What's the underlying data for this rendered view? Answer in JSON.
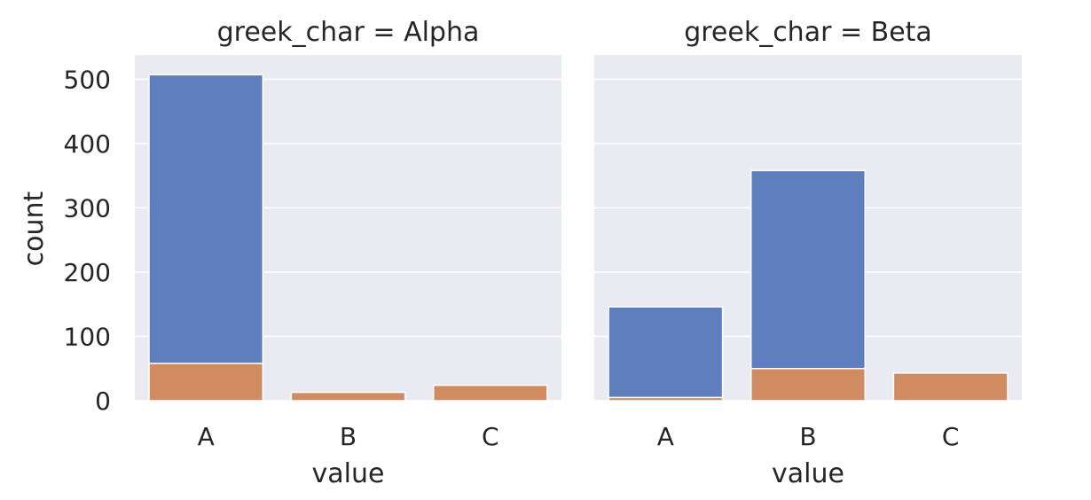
{
  "chart_data": {
    "type": "bar",
    "layout": "faceted-stacked-overlay",
    "ylabel": "count",
    "xlabel": "value",
    "categories": [
      "A",
      "B",
      "C"
    ],
    "ylim": [
      0,
      530
    ],
    "yticks": [
      0,
      100,
      200,
      300,
      400,
      500
    ],
    "grid": true,
    "background": "#eaeaf2",
    "colors": {
      "total": "#5e7ebd",
      "subset": "#d08c60",
      "grid": "#ffffff",
      "text": "#262626"
    },
    "panels": [
      {
        "title": "greek_char = Alpha",
        "series": [
          {
            "values": [
              507,
              0,
              0
            ]
          },
          {
            "values": [
              58,
              13,
              24
            ]
          }
        ]
      },
      {
        "title": "greek_char = Beta",
        "series": [
          {
            "values": [
              146,
              358,
              0
            ]
          },
          {
            "values": [
              5,
              50,
              43
            ]
          }
        ]
      }
    ]
  }
}
